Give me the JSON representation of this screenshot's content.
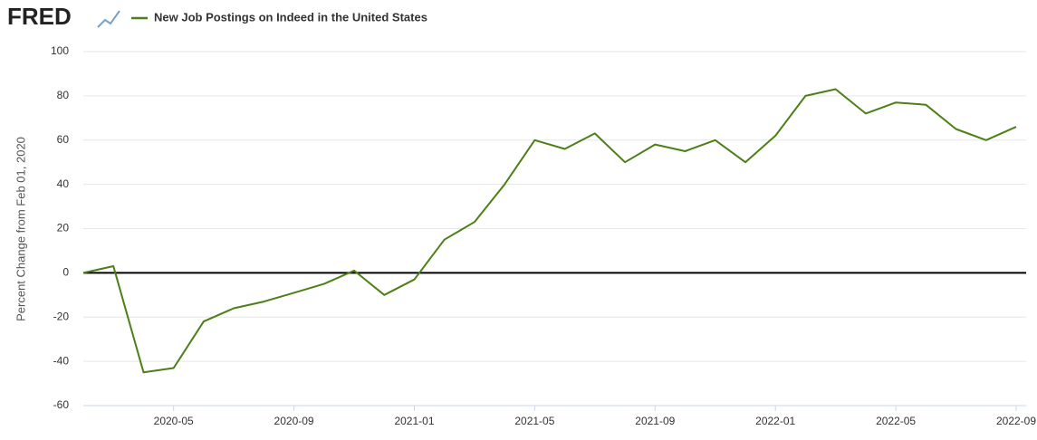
{
  "chart_data": {
    "type": "line",
    "logo": "FRED",
    "title": "New Job Postings on Indeed in the United States",
    "y_label": "Percent Change from Feb 01, 2020",
    "x": [
      "2020-02",
      "2020-03",
      "2020-04",
      "2020-05",
      "2020-06",
      "2020-07",
      "2020-08",
      "2020-09",
      "2020-10",
      "2020-11",
      "2020-12",
      "2021-01",
      "2021-02",
      "2021-03",
      "2021-04",
      "2021-05",
      "2021-06",
      "2021-07",
      "2021-08",
      "2021-09",
      "2021-10",
      "2021-11",
      "2021-12",
      "2022-01",
      "2022-02",
      "2022-03",
      "2022-04",
      "2022-05",
      "2022-06",
      "2022-07",
      "2022-08",
      "2022-09"
    ],
    "series": [
      {
        "name": "New Job Postings on Indeed in the United States",
        "color": "#4d7f17",
        "values": [
          0,
          3,
          -45,
          -43,
          -22,
          -16,
          -13,
          -9,
          -5,
          1,
          -10,
          -3,
          15,
          23,
          40,
          60,
          56,
          63,
          50,
          58,
          55,
          60,
          50,
          62,
          80,
          83,
          72,
          77,
          76,
          65,
          60,
          66
        ]
      }
    ],
    "xlim": [
      "2020-02",
      "2022-09"
    ],
    "xticks": [
      "2020-05",
      "2020-09",
      "2021-01",
      "2021-05",
      "2021-09",
      "2022-01",
      "2022-05",
      "2022-09"
    ],
    "ylim": [
      -60,
      100
    ],
    "yticks": [
      -60,
      -40,
      -20,
      0,
      20,
      40,
      60,
      80,
      100
    ],
    "grid": true
  }
}
